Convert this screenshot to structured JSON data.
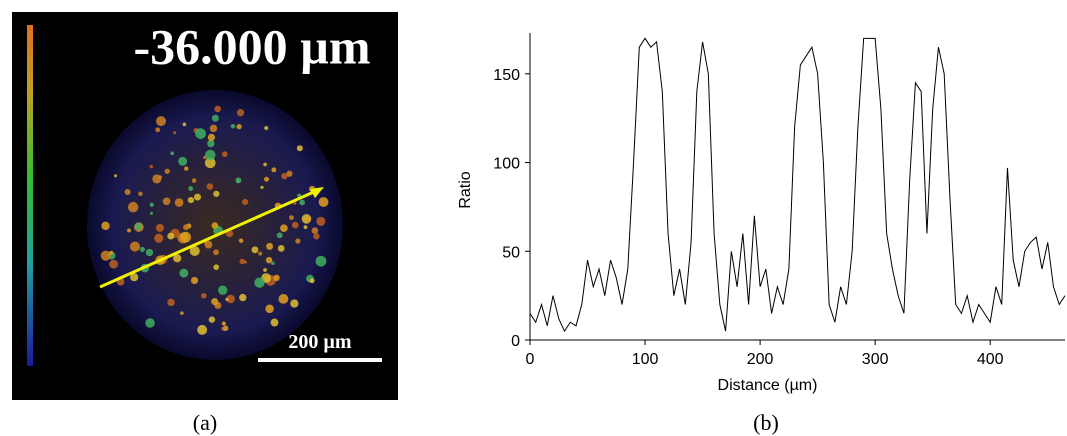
{
  "image_panel": {
    "label": "-36.000 µm",
    "scale_bar": "200 µm",
    "caption": "(a)"
  },
  "chart_data": {
    "type": "line",
    "caption": "(b)",
    "x_label": "Distance (µm)",
    "y_label": "Ratio",
    "x": [
      0,
      5,
      10,
      15,
      20,
      25,
      30,
      35,
      40,
      45,
      50,
      55,
      60,
      65,
      70,
      75,
      80,
      85,
      90,
      95,
      100,
      105,
      110,
      115,
      120,
      125,
      130,
      135,
      140,
      145,
      150,
      155,
      160,
      165,
      170,
      175,
      180,
      185,
      190,
      195,
      200,
      205,
      210,
      215,
      220,
      225,
      230,
      235,
      240,
      245,
      250,
      255,
      260,
      265,
      270,
      275,
      280,
      285,
      290,
      295,
      300,
      305,
      310,
      315,
      320,
      325,
      330,
      335,
      340,
      345,
      350,
      355,
      360,
      365,
      370,
      375,
      380,
      385,
      390,
      395,
      400,
      405,
      410,
      415,
      420,
      425,
      430,
      435,
      440,
      445,
      450,
      455,
      460,
      465
    ],
    "series": [
      {
        "color": "#000000",
        "values": [
          15,
          10,
          20,
          8,
          25,
          12,
          5,
          10,
          8,
          20,
          45,
          30,
          40,
          25,
          45,
          35,
          20,
          40,
          100,
          165,
          170,
          165,
          168,
          140,
          60,
          25,
          40,
          20,
          55,
          140,
          168,
          150,
          60,
          20,
          5,
          50,
          30,
          60,
          20,
          70,
          30,
          40,
          15,
          30,
          20,
          40,
          120,
          155,
          160,
          165,
          150,
          100,
          20,
          10,
          30,
          20,
          50,
          120,
          170,
          170,
          170,
          130,
          60,
          40,
          25,
          15,
          90,
          145,
          140,
          60,
          130,
          165,
          150,
          80,
          20,
          15,
          25,
          10,
          20,
          15,
          10,
          30,
          20,
          97,
          45,
          30,
          50,
          55,
          58,
          40,
          55,
          30,
          20,
          25
        ]
      }
    ],
    "xlim": [
      0,
      465
    ],
    "ylim": [
      0,
      173
    ],
    "xticks": [
      0,
      100,
      200,
      300,
      400
    ],
    "yticks": [
      0,
      50,
      100,
      150
    ]
  }
}
